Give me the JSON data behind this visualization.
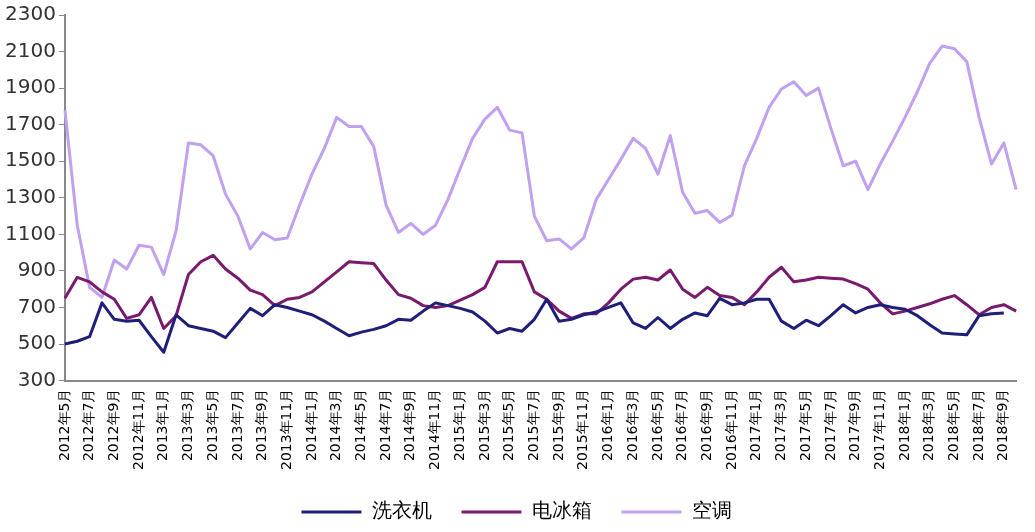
{
  "chart_data": {
    "type": "line",
    "categories": [
      "2012年5月",
      null,
      "2012年7月",
      null,
      "2012年9月",
      null,
      "2012年11月",
      null,
      "2013年1月",
      null,
      "2013年3月",
      null,
      "2013年5月",
      null,
      "2013年7月",
      null,
      "2013年9月",
      null,
      "2013年11月",
      null,
      "2014年1月",
      null,
      "2014年3月",
      null,
      "2014年5月",
      null,
      "2014年7月",
      null,
      "2014年9月",
      null,
      "2014年11月",
      null,
      "2015年1月",
      null,
      "2015年3月",
      null,
      "2015年5月",
      null,
      "2015年7月",
      null,
      "2015年9月",
      null,
      "2015年11月",
      null,
      "2016年1月",
      null,
      "2016年3月",
      null,
      "2016年5月",
      null,
      "2016年7月",
      null,
      "2016年9月",
      null,
      "2016年11月",
      null,
      "2017年1月",
      null,
      "2017年3月",
      null,
      "2017年5月",
      null,
      "2017年7月",
      null,
      "2017年9月",
      null,
      "2017年11月",
      null,
      "2018年1月",
      null,
      "2018年3月",
      null,
      "2018年5月",
      null,
      "2018年7月",
      null,
      "2018年9月",
      null
    ],
    "series": [
      {
        "name": "洗衣机",
        "color": "#1f1f7a",
        "values": [
          500,
          515,
          540,
          725,
          635,
          625,
          630,
          540,
          455,
          660,
          600,
          585,
          570,
          535,
          615,
          695,
          655,
          715,
          700,
          680,
          660,
          625,
          585,
          545,
          565,
          580,
          600,
          635,
          630,
          680,
          725,
          710,
          695,
          675,
          625,
          560,
          585,
          570,
          635,
          745,
          625,
          635,
          660,
          675,
          700,
          725,
          615,
          585,
          645,
          585,
          635,
          670,
          655,
          750,
          715,
          725,
          745,
          745,
          625,
          585,
          630,
          600,
          655,
          715,
          670,
          700,
          715,
          700,
          690,
          655,
          605,
          560,
          555,
          550,
          655,
          665,
          670,
          null
        ]
      },
      {
        "name": "电冰箱",
        "color": "#7a1a6e",
        "values": [
          750,
          865,
          840,
          785,
          745,
          640,
          660,
          755,
          585,
          655,
          880,
          950,
          985,
          910,
          860,
          795,
          770,
          710,
          745,
          755,
          785,
          840,
          895,
          950,
          945,
          940,
          850,
          770,
          750,
          710,
          700,
          710,
          740,
          770,
          810,
          950,
          950,
          950,
          785,
          745,
          680,
          640,
          665,
          665,
          725,
          800,
          855,
          865,
          850,
          905,
          800,
          755,
          810,
          765,
          755,
          715,
          785,
          865,
          920,
          840,
          850,
          865,
          860,
          855,
          830,
          800,
          725,
          665,
          680,
          700,
          720,
          745,
          765,
          715,
          660,
          700,
          715,
          680
        ]
      },
      {
        "name": "空调",
        "color": "#c0a0f0",
        "values": [
          1780,
          1150,
          810,
          755,
          960,
          910,
          1040,
          1030,
          880,
          1120,
          1600,
          1590,
          1530,
          1320,
          1200,
          1020,
          1110,
          1070,
          1080,
          1260,
          1430,
          1570,
          1740,
          1690,
          1690,
          1580,
          1260,
          1110,
          1160,
          1100,
          1150,
          1290,
          1460,
          1625,
          1730,
          1795,
          1670,
          1655,
          1200,
          1065,
          1075,
          1020,
          1080,
          1290,
          1400,
          1510,
          1625,
          1570,
          1430,
          1640,
          1330,
          1215,
          1230,
          1165,
          1205,
          1475,
          1625,
          1795,
          1895,
          1935,
          1860,
          1900,
          1680,
          1475,
          1500,
          1345,
          1485,
          1610,
          1740,
          1880,
          2035,
          2130,
          2115,
          2045,
          1740,
          1485,
          1600,
          1345
        ]
      }
    ],
    "ylim": [
      300,
      2300
    ],
    "yticks": [
      300,
      500,
      700,
      900,
      1100,
      1300,
      1500,
      1700,
      1900,
      2100,
      2300
    ],
    "grid": false,
    "legend": "bottom",
    "marker": "none",
    "line_style": "solid"
  }
}
